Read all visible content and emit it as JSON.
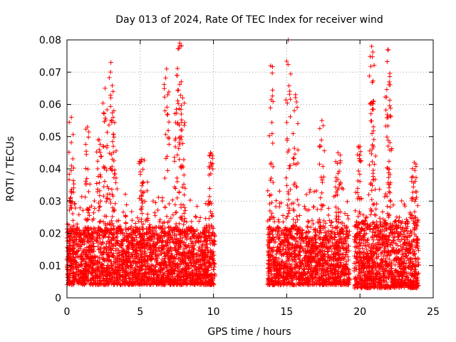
{
  "chart_data": {
    "type": "scatter",
    "title": "Day 013 of 2024, Rate Of TEC Index for receiver wind",
    "xlabel": "GPS time / hours",
    "ylabel": "ROTI / TECUs",
    "xlim": [
      0,
      25
    ],
    "ylim": [
      0,
      0.08
    ],
    "x_ticks": [
      0,
      5,
      10,
      15,
      20,
      25
    ],
    "x_tick_labels": [
      "0",
      "5",
      "10",
      "15",
      "20",
      "25"
    ],
    "y_ticks": [
      0,
      0.01,
      0.02,
      0.03,
      0.04,
      0.05,
      0.06,
      0.07,
      0.08
    ],
    "y_tick_labels": [
      "0",
      "0.01",
      "0.02",
      "0.03",
      "0.04",
      "0.05",
      "0.06",
      "0.07",
      "0.08"
    ],
    "grid": true,
    "marker": "+",
    "color": "#ff0000",
    "series": [
      {
        "segments": [
          {
            "x_start": 0.0,
            "x_end": 10.1,
            "base_low": 0.004,
            "base_high": 0.022
          },
          {
            "x_start": 13.7,
            "x_end": 19.3,
            "base_low": 0.004,
            "base_high": 0.022
          },
          {
            "x_start": 19.6,
            "x_end": 24.0,
            "base_low": 0.003,
            "base_high": 0.024
          }
        ],
        "peaks": [
          {
            "x": 0.3,
            "y": 0.056
          },
          {
            "x": 1.4,
            "y": 0.053
          },
          {
            "x": 2.2,
            "y": 0.049
          },
          {
            "x": 2.6,
            "y": 0.065
          },
          {
            "x": 3.0,
            "y": 0.073
          },
          {
            "x": 3.2,
            "y": 0.058
          },
          {
            "x": 5.1,
            "y": 0.043
          },
          {
            "x": 6.8,
            "y": 0.071
          },
          {
            "x": 7.5,
            "y": 0.069
          },
          {
            "x": 7.7,
            "y": 0.079
          },
          {
            "x": 7.9,
            "y": 0.062
          },
          {
            "x": 9.8,
            "y": 0.045
          },
          {
            "x": 13.9,
            "y": 0.072
          },
          {
            "x": 15.1,
            "y": 0.08
          },
          {
            "x": 15.6,
            "y": 0.063
          },
          {
            "x": 17.4,
            "y": 0.055
          },
          {
            "x": 18.5,
            "y": 0.045
          },
          {
            "x": 20.0,
            "y": 0.047
          },
          {
            "x": 20.8,
            "y": 0.078
          },
          {
            "x": 20.9,
            "y": 0.061
          },
          {
            "x": 21.9,
            "y": 0.077
          },
          {
            "x": 22.0,
            "y": 0.067
          },
          {
            "x": 23.7,
            "y": 0.042
          }
        ]
      }
    ]
  }
}
